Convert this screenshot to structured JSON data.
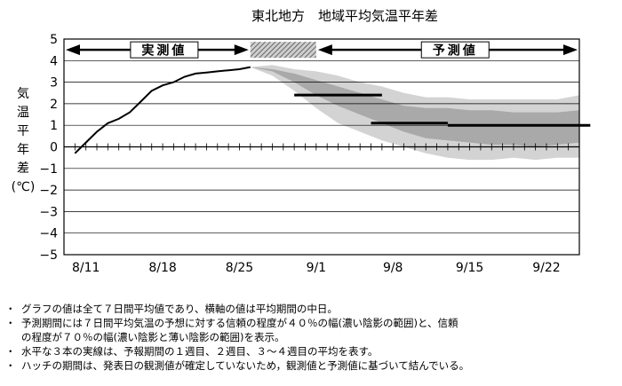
{
  "chart_data": {
    "type": "area",
    "title": "東北地方　地域平均気温平年差",
    "ylabel": "気温平年差(℃)",
    "ylabel_chars": [
      "気",
      "温",
      "平",
      "年",
      "差",
      "(℃)"
    ],
    "xlabel": "",
    "ylim": [
      -5,
      5
    ],
    "yticks": [
      5,
      4,
      3,
      2,
      1,
      0,
      -1,
      -2,
      -3,
      -4,
      -5
    ],
    "ytick_labels": [
      "5",
      "4",
      "3",
      "2",
      "1",
      "0",
      "−1",
      "−2",
      "−3",
      "−4",
      "−5"
    ],
    "x_start": "8/9",
    "x_end": "9/25",
    "x_ticks": [
      "8/11",
      "8/18",
      "8/25",
      "9/1",
      "9/8",
      "9/15",
      "9/22"
    ],
    "grid": true,
    "period_labels": {
      "observed": "実測値",
      "forecast": "予測値"
    },
    "observed": {
      "x": [
        "8/10",
        "8/11",
        "8/12",
        "8/13",
        "8/14",
        "8/15",
        "8/16",
        "8/17",
        "8/18",
        "8/19",
        "8/20",
        "8/21",
        "8/22",
        "8/23",
        "8/24",
        "8/25",
        "8/26"
      ],
      "y": [
        -0.3,
        0.2,
        0.7,
        1.1,
        1.3,
        1.6,
        2.1,
        2.6,
        2.85,
        3.0,
        3.25,
        3.4,
        3.45,
        3.5,
        3.55,
        3.6,
        3.7
      ]
    },
    "hatch_period": [
      "8/26",
      "9/1"
    ],
    "band_70": {
      "x": [
        "8/26",
        "8/28",
        "8/30",
        "9/1",
        "9/3",
        "9/5",
        "9/7",
        "9/9",
        "9/11",
        "9/13",
        "9/15",
        "9/17",
        "9/19",
        "9/21",
        "9/23",
        "9/25"
      ],
      "upper": [
        3.7,
        3.8,
        3.6,
        3.5,
        3.3,
        3.0,
        2.8,
        2.5,
        2.3,
        2.3,
        2.2,
        2.2,
        2.2,
        2.2,
        2.2,
        2.4
      ],
      "lower": [
        3.7,
        3.3,
        2.6,
        1.8,
        1.1,
        0.7,
        0.3,
        0.0,
        -0.3,
        -0.5,
        -0.6,
        -0.6,
        -0.5,
        -0.6,
        -0.5,
        -0.5
      ]
    },
    "band_40": {
      "x": [
        "8/26",
        "8/28",
        "8/30",
        "9/1",
        "9/3",
        "9/5",
        "9/7",
        "9/9",
        "9/11",
        "9/13",
        "9/15",
        "9/17",
        "9/19",
        "9/21",
        "9/23",
        "9/25"
      ],
      "upper": [
        3.7,
        3.6,
        3.4,
        3.1,
        2.8,
        2.5,
        2.2,
        1.9,
        1.8,
        1.8,
        1.7,
        1.7,
        1.6,
        1.6,
        1.6,
        1.7
      ],
      "lower": [
        3.7,
        3.5,
        3.0,
        2.4,
        1.9,
        1.5,
        1.1,
        0.7,
        0.4,
        0.3,
        0.2,
        0.1,
        0.1,
        0.0,
        0.1,
        0.2
      ]
    },
    "forecast_lines": [
      {
        "x_start": "8/30",
        "x_end": "9/7",
        "value": 2.4
      },
      {
        "x_start": "9/6",
        "x_end": "9/13",
        "value": 1.1
      },
      {
        "x_start": "9/13",
        "x_end": "9/26",
        "value": 1.0
      }
    ]
  },
  "notes": [
    "グラフの値は全て７日間平均値であり、横軸の値は平均期間の中日。",
    "予測期間には７日間平均気温の予想に対する信頼の程度が４０％の幅(濃い陰影の範囲)と、信頼",
    "の程度が７０％の幅(濃い陰影と薄い陰影の範囲)を表示。",
    "水平な３本の実線は、予報期間の１週目、２週目、３～４週目の平均を表す。",
    "ハッチの期間は、発表日の観測値が確定していないため，観測値と予測値に基づいて結んでいる。"
  ]
}
